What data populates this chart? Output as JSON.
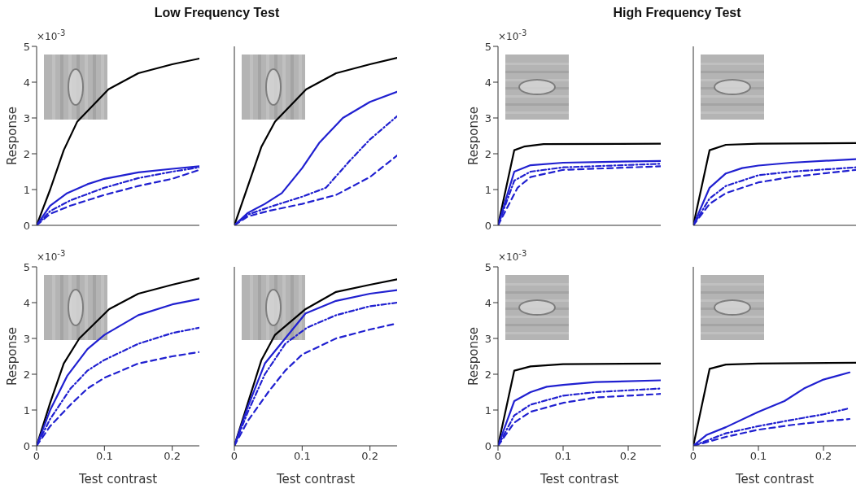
{
  "chart_data": [
    {
      "type": "line",
      "title": "Low Frequency Test",
      "ylabel": "Response",
      "annotations": [
        "×10$^{-3}$"
      ],
      "xlim": [
        0,
        0.24
      ],
      "ylim": [
        0,
        5
      ],
      "xticks": [
        0,
        0.1,
        0.2
      ],
      "yticks": [
        0,
        1,
        2,
        3,
        4,
        5
      ],
      "tick_labels": "y",
      "series": [
        {
          "color": "#000000",
          "line_style": "solid",
          "x": [
            0,
            0.02,
            0.04,
            0.06,
            0.106,
            0.15,
            0.2,
            0.24
          ],
          "values": [
            0,
            1.0,
            2.1,
            2.9,
            3.8,
            4.25,
            4.5,
            4.66
          ]
        },
        {
          "color": "#2020d0",
          "line_style": "solid",
          "x": [
            0,
            0.02,
            0.045,
            0.075,
            0.1,
            0.15,
            0.2,
            0.24
          ],
          "values": [
            0,
            0.55,
            0.9,
            1.15,
            1.3,
            1.48,
            1.58,
            1.65
          ]
        },
        {
          "color": "#2020d0",
          "line_style": "dotted",
          "x": [
            0,
            0.02,
            0.05,
            0.1,
            0.15,
            0.2,
            0.24
          ],
          "values": [
            0,
            0.4,
            0.7,
            1.05,
            1.32,
            1.5,
            1.62
          ]
        },
        {
          "color": "#2020d0",
          "line_style": "dashed",
          "x": [
            0,
            0.02,
            0.05,
            0.1,
            0.15,
            0.2,
            0.24
          ],
          "values": [
            0,
            0.32,
            0.55,
            0.85,
            1.1,
            1.3,
            1.55
          ]
        }
      ]
    },
    {
      "type": "line",
      "xlim": [
        0,
        0.24
      ],
      "ylim": [
        0,
        5
      ],
      "xticks": [
        0,
        0.1,
        0.2
      ],
      "yticks": [
        0,
        1,
        2,
        3,
        4,
        5
      ],
      "tick_labels": false,
      "series": [
        {
          "color": "#000000",
          "line_style": "solid",
          "x": [
            0,
            0.02,
            0.04,
            0.06,
            0.106,
            0.15,
            0.2,
            0.24
          ],
          "values": [
            0,
            1.1,
            2.2,
            2.9,
            3.8,
            4.25,
            4.5,
            4.68
          ]
        },
        {
          "color": "#2020d0",
          "line_style": "solid",
          "x": [
            0,
            0.02,
            0.045,
            0.07,
            0.1,
            0.125,
            0.16,
            0.2,
            0.24
          ],
          "values": [
            0,
            0.35,
            0.6,
            0.9,
            1.6,
            2.3,
            3.0,
            3.45,
            3.73
          ]
        },
        {
          "color": "#2020d0",
          "line_style": "dotted",
          "x": [
            0,
            0.02,
            0.05,
            0.1,
            0.135,
            0.17,
            0.2,
            0.24
          ],
          "values": [
            0,
            0.3,
            0.5,
            0.8,
            1.05,
            1.8,
            2.4,
            3.05
          ]
        },
        {
          "color": "#2020d0",
          "line_style": "dashed",
          "x": [
            0,
            0.02,
            0.05,
            0.1,
            0.15,
            0.2,
            0.24
          ],
          "values": [
            0,
            0.25,
            0.4,
            0.6,
            0.85,
            1.35,
            1.95
          ]
        }
      ]
    },
    {
      "type": "line",
      "title": "High Frequency Test",
      "ylabel": "Response",
      "annotations": [
        "×10$^{-3}$"
      ],
      "xlim": [
        0,
        0.25
      ],
      "ylim": [
        0,
        5
      ],
      "xticks": [
        0,
        0.1,
        0.2
      ],
      "yticks": [
        0,
        1,
        2,
        3,
        4,
        5
      ],
      "tick_labels": "y",
      "series": [
        {
          "color": "#000000",
          "line_style": "solid",
          "x": [
            0,
            0.025,
            0.04,
            0.07,
            0.25
          ],
          "values": [
            0,
            2.1,
            2.2,
            2.27,
            2.28
          ]
        },
        {
          "color": "#2020d0",
          "line_style": "solid",
          "x": [
            0,
            0.025,
            0.05,
            0.1,
            0.25
          ],
          "values": [
            0,
            1.5,
            1.68,
            1.75,
            1.8
          ]
        },
        {
          "color": "#2020d0",
          "line_style": "dotted",
          "x": [
            0,
            0.025,
            0.05,
            0.1,
            0.25
          ],
          "values": [
            0,
            1.25,
            1.5,
            1.62,
            1.72
          ]
        },
        {
          "color": "#2020d0",
          "line_style": "dashed",
          "x": [
            0,
            0.03,
            0.05,
            0.1,
            0.25
          ],
          "values": [
            0,
            1.05,
            1.35,
            1.55,
            1.65
          ]
        }
      ]
    },
    {
      "type": "line",
      "xlim": [
        0,
        0.25
      ],
      "ylim": [
        0,
        5
      ],
      "xticks": [
        0,
        0.1,
        0.2
      ],
      "yticks": [
        0,
        1,
        2,
        3,
        4,
        5
      ],
      "tick_labels": false,
      "series": [
        {
          "color": "#000000",
          "line_style": "solid",
          "x": [
            0,
            0.025,
            0.05,
            0.1,
            0.25
          ],
          "values": [
            0,
            2.1,
            2.25,
            2.28,
            2.3
          ]
        },
        {
          "color": "#2020d0",
          "line_style": "solid",
          "x": [
            0,
            0.025,
            0.05,
            0.075,
            0.1,
            0.15,
            0.25
          ],
          "values": [
            0,
            1.05,
            1.45,
            1.6,
            1.67,
            1.75,
            1.85
          ]
        },
        {
          "color": "#2020d0",
          "line_style": "dotted",
          "x": [
            0,
            0.025,
            0.05,
            0.1,
            0.15,
            0.25
          ],
          "values": [
            0,
            0.75,
            1.1,
            1.4,
            1.5,
            1.62
          ]
        },
        {
          "color": "#2020d0",
          "line_style": "dashed",
          "x": [
            0,
            0.025,
            0.05,
            0.1,
            0.15,
            0.25
          ],
          "values": [
            0,
            0.6,
            0.9,
            1.2,
            1.35,
            1.55
          ]
        }
      ]
    },
    {
      "type": "line",
      "xlabel": "Test contrast",
      "ylabel": "Response",
      "annotations": [
        "×10$^{-3}$"
      ],
      "xlim": [
        0,
        0.24
      ],
      "ylim": [
        0,
        5
      ],
      "xticks": [
        0,
        0.1,
        0.2
      ],
      "yticks": [
        0,
        1,
        2,
        3,
        4,
        5
      ],
      "series": [
        {
          "color": "#000000",
          "line_style": "solid",
          "x": [
            0,
            0.02,
            0.04,
            0.063,
            0.107,
            0.15,
            0.2,
            0.24
          ],
          "values": [
            0,
            1.2,
            2.3,
            3.0,
            3.82,
            4.25,
            4.5,
            4.68
          ]
        },
        {
          "color": "#2020d0",
          "line_style": "solid",
          "x": [
            0,
            0.02,
            0.045,
            0.075,
            0.1,
            0.15,
            0.2,
            0.24
          ],
          "values": [
            0,
            1.0,
            1.95,
            2.7,
            3.1,
            3.65,
            3.95,
            4.1
          ]
        },
        {
          "color": "#2020d0",
          "line_style": "dotted",
          "x": [
            0,
            0.02,
            0.05,
            0.075,
            0.1,
            0.15,
            0.2,
            0.24
          ],
          "values": [
            0,
            0.75,
            1.6,
            2.1,
            2.4,
            2.85,
            3.15,
            3.3
          ]
        },
        {
          "color": "#2020d0",
          "line_style": "dashed",
          "x": [
            0,
            0.02,
            0.05,
            0.075,
            0.1,
            0.15,
            0.2,
            0.24
          ],
          "values": [
            0,
            0.55,
            1.15,
            1.6,
            1.9,
            2.3,
            2.5,
            2.62
          ]
        }
      ]
    },
    {
      "type": "line",
      "xlabel": "Test contrast",
      "xlim": [
        0,
        0.24
      ],
      "ylim": [
        0,
        5
      ],
      "xticks": [
        0,
        0.1,
        0.2
      ],
      "yticks": [
        0,
        1,
        2,
        3,
        4,
        5
      ],
      "tick_labels": "x",
      "series": [
        {
          "color": "#000000",
          "line_style": "solid",
          "x": [
            0,
            0.02,
            0.04,
            0.06,
            0.105,
            0.15,
            0.2,
            0.24
          ],
          "values": [
            0,
            1.2,
            2.4,
            3.1,
            3.82,
            4.3,
            4.5,
            4.65
          ]
        },
        {
          "color": "#2020d0",
          "line_style": "solid",
          "x": [
            0,
            0.02,
            0.045,
            0.105,
            0.15,
            0.2,
            0.24
          ],
          "values": [
            0,
            1.1,
            2.3,
            3.7,
            4.05,
            4.25,
            4.35
          ]
        },
        {
          "color": "#2020d0",
          "line_style": "dotted",
          "x": [
            0,
            0.02,
            0.045,
            0.075,
            0.107,
            0.15,
            0.2,
            0.24
          ],
          "values": [
            0,
            0.95,
            2.0,
            2.85,
            3.3,
            3.65,
            3.9,
            4.0
          ]
        },
        {
          "color": "#2020d0",
          "line_style": "dashed",
          "x": [
            0,
            0.02,
            0.05,
            0.075,
            0.1,
            0.15,
            0.2,
            0.24
          ],
          "values": [
            0,
            0.7,
            1.5,
            2.1,
            2.55,
            3.0,
            3.25,
            3.42
          ]
        }
      ]
    },
    {
      "type": "line",
      "xlabel": "Test contrast",
      "ylabel": "Response",
      "annotations": [
        "×10$^{-3}$"
      ],
      "xlim": [
        0,
        0.25
      ],
      "ylim": [
        0,
        5
      ],
      "xticks": [
        0,
        0.1,
        0.2
      ],
      "yticks": [
        0,
        1,
        2,
        3,
        4,
        5
      ],
      "series": [
        {
          "color": "#000000",
          "line_style": "solid",
          "x": [
            0,
            0.025,
            0.05,
            0.1,
            0.25
          ],
          "values": [
            0,
            2.1,
            2.22,
            2.28,
            2.3
          ]
        },
        {
          "color": "#2020d0",
          "line_style": "solid",
          "x": [
            0,
            0.025,
            0.05,
            0.075,
            0.1,
            0.15,
            0.25
          ],
          "values": [
            0,
            1.25,
            1.5,
            1.65,
            1.7,
            1.78,
            1.83
          ]
        },
        {
          "color": "#2020d0",
          "line_style": "dotted",
          "x": [
            0,
            0.025,
            0.05,
            0.1,
            0.15,
            0.25
          ],
          "values": [
            0,
            0.85,
            1.15,
            1.4,
            1.5,
            1.6
          ]
        },
        {
          "color": "#2020d0",
          "line_style": "dashed",
          "x": [
            0,
            0.025,
            0.05,
            0.1,
            0.15,
            0.25
          ],
          "values": [
            0,
            0.65,
            0.95,
            1.2,
            1.35,
            1.45
          ]
        }
      ]
    },
    {
      "type": "line",
      "xlabel": "Test contrast",
      "xlim": [
        0,
        0.25
      ],
      "ylim": [
        0,
        5
      ],
      "xticks": [
        0,
        0.1,
        0.2
      ],
      "yticks": [
        0,
        1,
        2,
        3,
        4,
        5
      ],
      "tick_labels": "x",
      "series": [
        {
          "color": "#000000",
          "line_style": "solid",
          "x": [
            0,
            0.025,
            0.05,
            0.1,
            0.25
          ],
          "values": [
            0,
            2.15,
            2.27,
            2.3,
            2.32
          ]
        },
        {
          "color": "#2020d0",
          "line_style": "solid",
          "x": [
            0,
            0.02,
            0.05,
            0.1,
            0.14,
            0.17,
            0.2,
            0.24
          ],
          "values": [
            0,
            0.3,
            0.52,
            0.95,
            1.25,
            1.6,
            1.85,
            2.05
          ]
        },
        {
          "color": "#2020d0",
          "line_style": "dotted",
          "x": [
            0,
            0.05,
            0.1,
            0.15,
            0.2,
            0.24
          ],
          "values": [
            0,
            0.35,
            0.55,
            0.72,
            0.88,
            1.05
          ]
        },
        {
          "color": "#2020d0",
          "line_style": "dashed",
          "x": [
            0,
            0.05,
            0.1,
            0.15,
            0.2,
            0.24
          ],
          "values": [
            0,
            0.25,
            0.45,
            0.58,
            0.68,
            0.75
          ]
        }
      ]
    }
  ]
}
